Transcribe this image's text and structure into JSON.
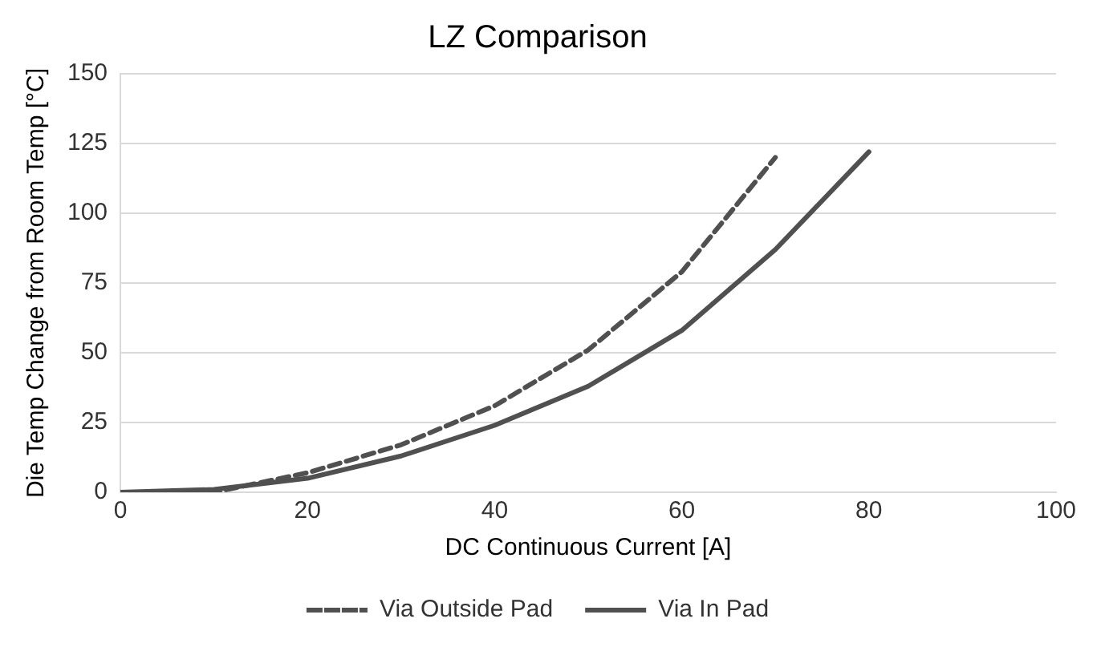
{
  "chart_data": {
    "type": "line",
    "title": "LZ Comparison",
    "xlabel": "DC Continuous Current [A]",
    "ylabel": "Die Temp Change from Room Temp [°C]",
    "xlim": [
      0,
      100
    ],
    "xticks": [
      0,
      20,
      40,
      60,
      80,
      100
    ],
    "ylim": [
      0,
      150
    ],
    "yticks": [
      0,
      25,
      50,
      75,
      100,
      125,
      150
    ],
    "grid": "y",
    "legend": "bottom",
    "marker": "none",
    "series": [
      {
        "name": "Via Outside Pad",
        "color": "#505050",
        "line_style": "dashed",
        "x": [
          0,
          10,
          20,
          30,
          40,
          50,
          60,
          70
        ],
        "values": [
          0,
          0,
          7,
          17,
          31,
          51,
          79,
          120
        ]
      },
      {
        "name": "Via In Pad",
        "color": "#505050",
        "line_style": "solid",
        "x": [
          0,
          10,
          20,
          30,
          40,
          50,
          60,
          70,
          80
        ],
        "values": [
          0,
          1,
          5,
          13,
          24,
          38,
          58,
          87,
          122
        ]
      }
    ]
  }
}
